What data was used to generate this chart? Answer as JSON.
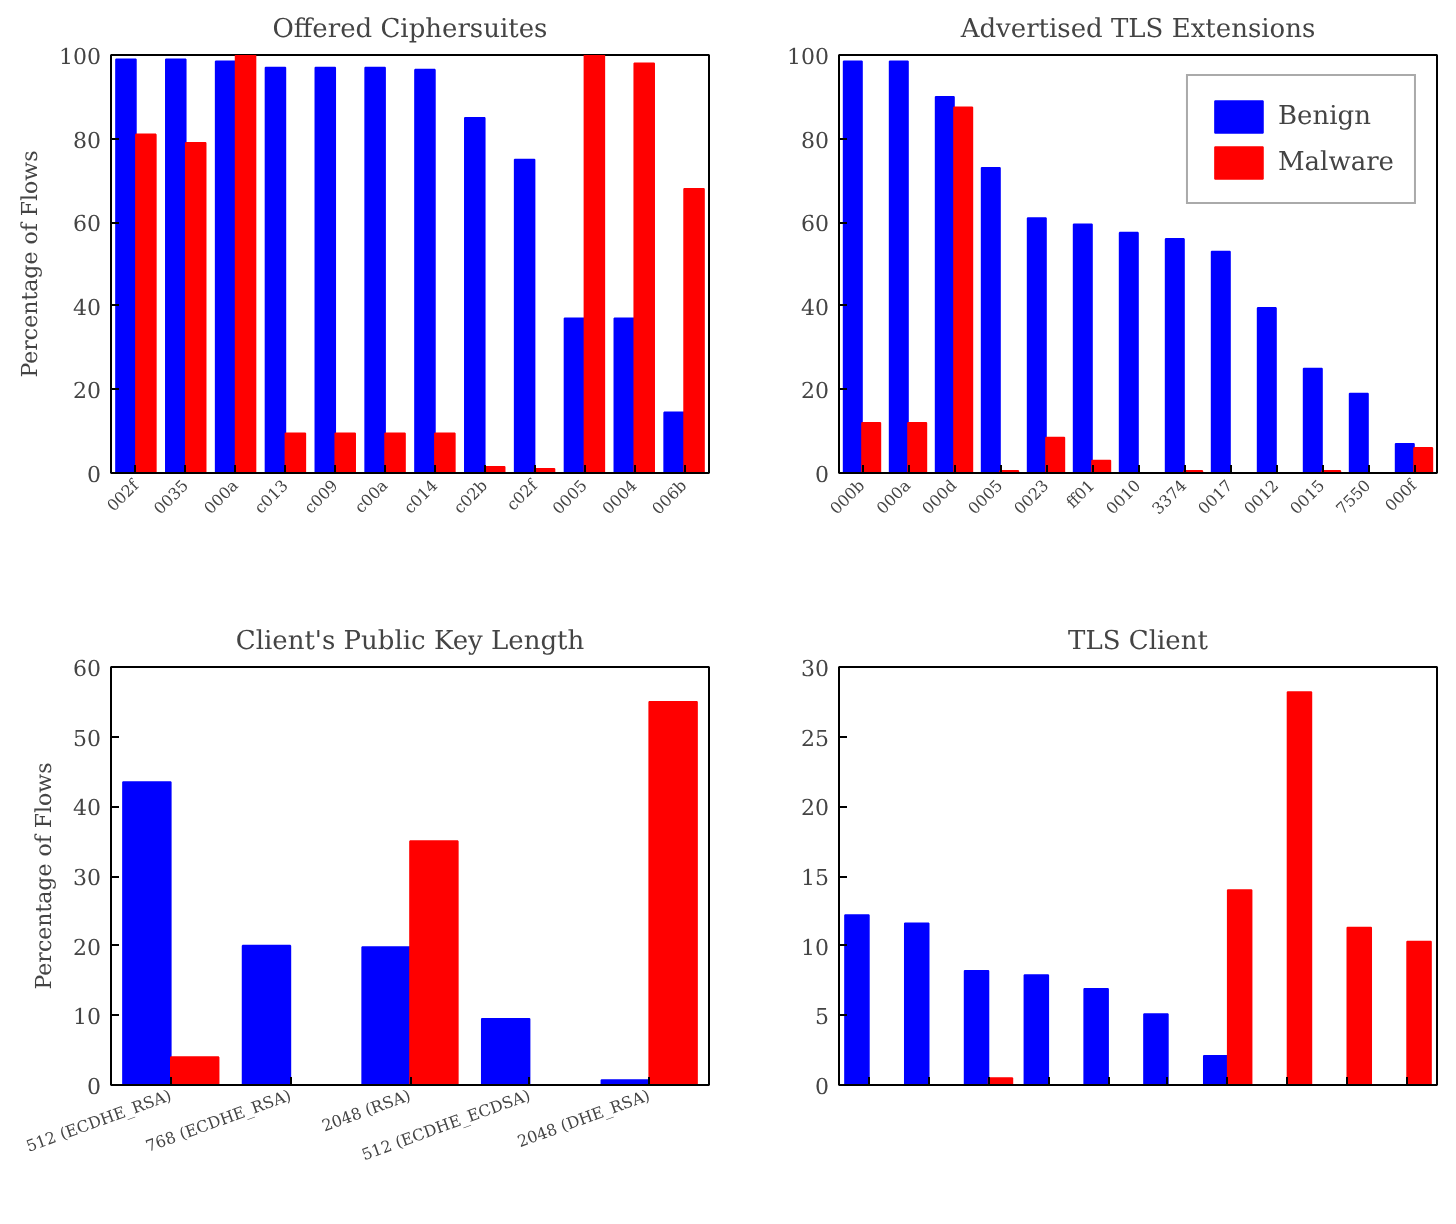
{
  "chart_data": [
    {
      "type": "bar",
      "title": "Offered Ciphersuites",
      "ylabel": "Percentage of Flows",
      "categories": [
        "002f",
        "0035",
        "000a",
        "c013",
        "c009",
        "c00a",
        "c014",
        "c02b",
        "c02f",
        "0005",
        "0004",
        "006b"
      ],
      "series": [
        {
          "color": "#0000ff",
          "values": [
            99,
            99,
            98.5,
            97,
            97,
            97,
            96.5,
            85,
            75,
            37,
            37,
            14.5
          ]
        },
        {
          "color": "#ff0000",
          "values": [
            81,
            79,
            100,
            9.5,
            9.5,
            9.5,
            9.5,
            1.5,
            1,
            100,
            98,
            68
          ]
        }
      ],
      "ylim": [
        0,
        100
      ],
      "yticks": [
        0,
        20,
        40,
        60,
        80,
        100
      ],
      "grid": false
    },
    {
      "type": "bar",
      "title": "Advertised TLS Extensions",
      "categories": [
        "000b",
        "000a",
        "000d",
        "0005",
        "0023",
        "ff01",
        "0010",
        "3374",
        "0017",
        "0012",
        "0015",
        "7550",
        "000f"
      ],
      "series": [
        {
          "name": "Benign",
          "color": "#0000ff",
          "values": [
            98.5,
            98.5,
            90,
            73,
            61,
            59.5,
            57.5,
            56,
            53,
            39.5,
            25,
            19,
            7
          ]
        },
        {
          "name": "Malware",
          "color": "#ff0000",
          "values": [
            12,
            12,
            87.5,
            0.5,
            8.5,
            3,
            0,
            0.5,
            0,
            0,
            0.5,
            0,
            6
          ]
        }
      ],
      "ylim": [
        0,
        100
      ],
      "yticks": [
        0,
        20,
        40,
        60,
        80,
        100
      ],
      "grid": false,
      "legend": "top right"
    },
    {
      "type": "bar",
      "title": "Client's Public Key Length",
      "ylabel": "Percentage of Flows",
      "categories": [
        "512 (ECDHE_RSA)",
        "768 (ECDHE_RSA)",
        "2048 (RSA)",
        "512 (ECDHE_ECDSA)",
        "2048 (DHE_RSA)"
      ],
      "series": [
        {
          "color": "#0000ff",
          "values": [
            43.5,
            20,
            19.8,
            9.5,
            0.7
          ]
        },
        {
          "color": "#ff0000",
          "values": [
            4,
            0,
            35,
            0,
            55
          ]
        }
      ],
      "ylim": [
        0,
        60
      ],
      "yticks": [
        0,
        10,
        20,
        30,
        40,
        50,
        60
      ],
      "grid": false
    },
    {
      "type": "bar",
      "title": "TLS Client",
      "categories": [
        null,
        null,
        null,
        null,
        null,
        null,
        null,
        null,
        null,
        null
      ],
      "series": [
        {
          "color": "#0000ff",
          "values": [
            12.2,
            11.6,
            8.2,
            7.9,
            6.9,
            5.1,
            2.1,
            0,
            0,
            0
          ]
        },
        {
          "color": "#ff0000",
          "values": [
            0,
            0,
            0.5,
            0,
            0,
            0,
            14,
            28.2,
            11.3,
            10.3
          ]
        }
      ],
      "ylim": [
        0,
        30
      ],
      "yticks": [
        0,
        5,
        10,
        15,
        20,
        25,
        30
      ],
      "grid": false
    }
  ]
}
